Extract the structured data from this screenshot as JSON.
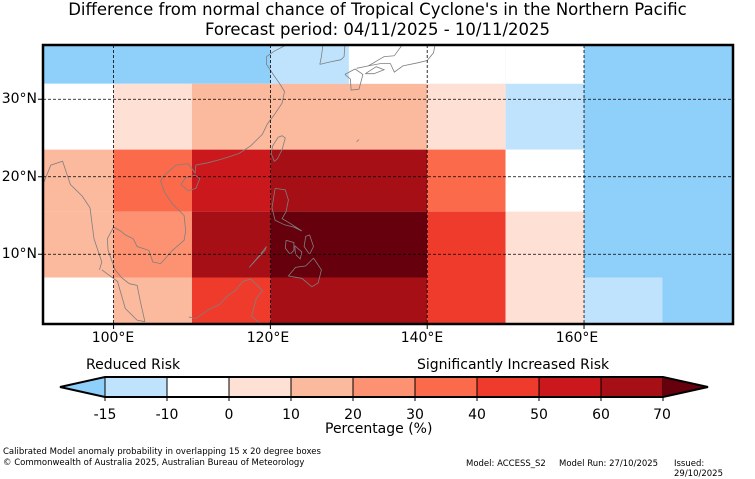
{
  "title_line1": "Difference from normal chance of Tropical Cyclone's in the Northern Pacific",
  "title_line2": "Forecast period: 04/11/2025 - 10/11/2025",
  "map": {
    "lon_range": [
      91,
      179
    ],
    "lat_range": [
      1,
      37
    ],
    "x_ticks": [
      {
        "lon": 100,
        "label": "100°E"
      },
      {
        "lon": 120,
        "label": "120°E"
      },
      {
        "lon": 140,
        "label": "140°E"
      },
      {
        "lon": 160,
        "label": "160°E"
      }
    ],
    "y_ticks": [
      {
        "lat": 30,
        "label": "30°N"
      },
      {
        "lat": 20,
        "label": "20°N"
      },
      {
        "lat": 10,
        "label": "10°N"
      }
    ],
    "cells": [
      {
        "lon0": 91,
        "lon1": 150,
        "lat0": 32,
        "lat1": 37,
        "color": "#8fd0fb"
      },
      {
        "lon0": 91,
        "lon1": 100,
        "lat0": 23.5,
        "lat1": 32,
        "color": "#ffffff"
      },
      {
        "lon0": 100,
        "lon1": 110,
        "lat0": 23.5,
        "lat1": 32,
        "color": "#fee0d4"
      },
      {
        "lon0": 110,
        "lon1": 140,
        "lat0": 23.5,
        "lat1": 32,
        "color": "#fbb99d"
      },
      {
        "lon0": 140,
        "lon1": 150,
        "lat0": 23.5,
        "lat1": 32,
        "color": "#fee0d4"
      },
      {
        "lon0": 150,
        "lon1": 160,
        "lat0": 23.5,
        "lat1": 32,
        "color": "#c0e3fd"
      },
      {
        "lon0": 91,
        "lon1": 100,
        "lat0": 15.5,
        "lat1": 23.5,
        "color": "#fbb99d"
      },
      {
        "lon0": 100,
        "lon1": 110,
        "lat0": 15.5,
        "lat1": 23.5,
        "color": "#fb6a4a"
      },
      {
        "lon0": 110,
        "lon1": 120,
        "lat0": 15.5,
        "lat1": 23.5,
        "color": "#cb181d"
      },
      {
        "lon0": 120,
        "lon1": 140,
        "lat0": 15.5,
        "lat1": 23.5,
        "color": "#a50f15"
      },
      {
        "lon0": 140,
        "lon1": 150,
        "lat0": 15.5,
        "lat1": 23.5,
        "color": "#fb6a4a"
      },
      {
        "lon0": 150,
        "lon1": 160,
        "lat0": 15.5,
        "lat1": 23.5,
        "color": "#ffffff"
      },
      {
        "lon0": 91,
        "lon1": 100,
        "lat0": 7,
        "lat1": 15.5,
        "color": "#fbb99d"
      },
      {
        "lon0": 100,
        "lon1": 110,
        "lat0": 7,
        "lat1": 15.5,
        "color": "#fc9272"
      },
      {
        "lon0": 110,
        "lon1": 120,
        "lat0": 7,
        "lat1": 15.5,
        "color": "#a50f15"
      },
      {
        "lon0": 120,
        "lon1": 140,
        "lat0": 7,
        "lat1": 15.5,
        "color": "#67000d"
      },
      {
        "lon0": 140,
        "lon1": 150,
        "lat0": 7,
        "lat1": 15.5,
        "color": "#ef3b2c"
      },
      {
        "lon0": 150,
        "lon1": 160,
        "lat0": 7,
        "lat1": 15.5,
        "color": "#fee0d4"
      },
      {
        "lon0": 91,
        "lon1": 100,
        "lat0": 1,
        "lat1": 7,
        "color": "#ffffff"
      },
      {
        "lon0": 100,
        "lon1": 110,
        "lat0": 1,
        "lat1": 7,
        "color": "#fbb99d"
      },
      {
        "lon0": 110,
        "lon1": 120,
        "lat0": 1,
        "lat1": 7,
        "color": "#ef3b2c"
      },
      {
        "lon0": 120,
        "lon1": 140,
        "lat0": 1,
        "lat1": 7,
        "color": "#a50f15"
      },
      {
        "lon0": 140,
        "lon1": 150,
        "lat0": 1,
        "lat1": 7,
        "color": "#ef3b2c"
      },
      {
        "lon0": 150,
        "lon1": 160,
        "lat0": 1,
        "lat1": 7,
        "color": "#fee0d4"
      },
      {
        "lon0": 160,
        "lon1": 179,
        "lat0": 1,
        "lat1": 37,
        "color": "#8fd0fb"
      },
      {
        "lon0": 160,
        "lon1": 170,
        "lat0": 1,
        "lat1": 7,
        "color": "#c0e3fd"
      },
      {
        "lon0": 120,
        "lon1": 130,
        "lat0": 32,
        "lat1": 37,
        "color": "#c0e3fd"
      },
      {
        "lon0": 130,
        "lon1": 150,
        "lat0": 32,
        "lat1": 37,
        "color": "#ffffff"
      }
    ],
    "coastlines": [
      [
        [
          91,
          19
        ],
        [
          92,
          21.5
        ],
        [
          93.5,
          22
        ],
        [
          94.5,
          19
        ],
        [
          96,
          17.5
        ],
        [
          97,
          16
        ],
        [
          97.5,
          12
        ],
        [
          98.5,
          9
        ],
        [
          98.2,
          8
        ]
      ],
      [
        [
          98.5,
          8
        ],
        [
          100.5,
          6.5
        ],
        [
          101.5,
          3
        ],
        [
          103,
          1.5
        ],
        [
          104,
          1.3
        ]
      ],
      [
        [
          104,
          1.3
        ],
        [
          103.4,
          4
        ],
        [
          103,
          6
        ],
        [
          102,
          6.2
        ],
        [
          101,
          7
        ],
        [
          100.2,
          8
        ],
        [
          99.3,
          10.5
        ],
        [
          99.2,
          12
        ],
        [
          100,
          13.5
        ],
        [
          100.9,
          13
        ],
        [
          101.5,
          12.5
        ],
        [
          102.5,
          12
        ],
        [
          103,
          11
        ],
        [
          104.5,
          10.5
        ],
        [
          105,
          9
        ],
        [
          106,
          8.8
        ],
        [
          107.5,
          10.5
        ],
        [
          109,
          11.8
        ],
        [
          109.2,
          13
        ],
        [
          109,
          15
        ],
        [
          107.5,
          16.5
        ],
        [
          106.5,
          18
        ],
        [
          106,
          19.5
        ],
        [
          106.8,
          20.5
        ],
        [
          108,
          21.5
        ],
        [
          109.5,
          21.7
        ],
        [
          110.4,
          20.5
        ],
        [
          110.5,
          21.5
        ],
        [
          112,
          21.8
        ],
        [
          113.5,
          22.2
        ],
        [
          114.5,
          22.5
        ],
        [
          116,
          23
        ],
        [
          117.5,
          24
        ],
        [
          119,
          25.5
        ],
        [
          119.6,
          26.8
        ],
        [
          120.5,
          28
        ],
        [
          121.5,
          29.5
        ],
        [
          121.8,
          31
        ],
        [
          121.2,
          32
        ],
        [
          120.5,
          33
        ],
        [
          119.5,
          34.5
        ],
        [
          119.5,
          35.5
        ],
        [
          120.5,
          36.2
        ],
        [
          122,
          37
        ]
      ],
      [
        [
          120.1,
          23
        ],
        [
          120.5,
          22
        ],
        [
          120.9,
          22.3
        ],
        [
          121.5,
          23.5
        ],
        [
          121.9,
          25
        ],
        [
          121.5,
          25.3
        ],
        [
          121,
          25.1
        ],
        [
          120.3,
          24
        ],
        [
          120.1,
          23
        ]
      ],
      [
        [
          108.6,
          19
        ],
        [
          109.5,
          18.2
        ],
        [
          110.5,
          18.5
        ],
        [
          111,
          19.8
        ],
        [
          110.4,
          20.2
        ],
        [
          109.2,
          19.9
        ],
        [
          108.6,
          19
        ]
      ],
      [
        [
          120.6,
          18.5
        ],
        [
          121.9,
          18.3
        ],
        [
          122.3,
          17
        ],
        [
          122,
          15.5
        ],
        [
          121.5,
          14.6
        ],
        [
          122.5,
          14
        ],
        [
          124,
          13
        ],
        [
          123,
          13.5
        ],
        [
          121.8,
          13.8
        ],
        [
          120.6,
          14.4
        ],
        [
          120.2,
          16
        ],
        [
          120.6,
          18.5
        ]
      ],
      [
        [
          125,
          12.5
        ],
        [
          125.5,
          11
        ],
        [
          125,
          10
        ],
        [
          124.3,
          11
        ],
        [
          124.5,
          12.3
        ],
        [
          125,
          12.5
        ]
      ],
      [
        [
          122,
          11.8
        ],
        [
          123,
          11.5
        ],
        [
          123,
          10.5
        ],
        [
          122.5,
          10
        ],
        [
          121.9,
          10.8
        ],
        [
          122,
          11.8
        ]
      ],
      [
        [
          123.1,
          11.1
        ],
        [
          124,
          10.3
        ],
        [
          123.8,
          9.4
        ],
        [
          123.2,
          10
        ],
        [
          123.1,
          11.1
        ]
      ],
      [
        [
          125.5,
          9.5
        ],
        [
          126.5,
          8
        ],
        [
          126.1,
          6.3
        ],
        [
          125.3,
          5.8
        ],
        [
          124,
          6.9
        ],
        [
          122.3,
          7.2
        ],
        [
          123.2,
          8.3
        ],
        [
          124.5,
          8.5
        ],
        [
          125.5,
          9.5
        ]
      ],
      [
        [
          117.3,
          8.3
        ],
        [
          119.3,
          10.5
        ],
        [
          119.5,
          11
        ],
        [
          118.8,
          10.1
        ],
        [
          117.3,
          8.3
        ]
      ],
      [
        [
          109.6,
          1.9
        ],
        [
          110.5,
          1.7
        ],
        [
          112,
          2.8
        ],
        [
          113.5,
          3.5
        ],
        [
          114.5,
          4.6
        ],
        [
          115.5,
          5.3
        ],
        [
          116.5,
          6.5
        ],
        [
          117.5,
          6.8
        ],
        [
          119,
          5.3
        ],
        [
          118.2,
          4.3
        ],
        [
          117.6,
          2
        ],
        [
          118.8,
          1
        ]
      ],
      [
        [
          129.5,
          33.2
        ],
        [
          130.8,
          33.9
        ],
        [
          131.8,
          33.2
        ],
        [
          131.3,
          31.3
        ],
        [
          130.3,
          31.2
        ],
        [
          130.2,
          32.6
        ],
        [
          129.5,
          33.2
        ]
      ],
      [
        [
          131,
          34
        ],
        [
          132.5,
          34.3
        ],
        [
          134,
          34.6
        ],
        [
          135.3,
          34.6
        ],
        [
          135.8,
          33.5
        ],
        [
          136.9,
          34.3
        ],
        [
          138.8,
          34.7
        ],
        [
          140,
          35
        ],
        [
          140.8,
          36
        ],
        [
          141,
          37
        ]
      ],
      [
        [
          132.5,
          34.3
        ],
        [
          134.5,
          35.5
        ],
        [
          135.8,
          35.6
        ],
        [
          136.8,
          37
        ]
      ],
      [
        [
          132.1,
          33.3
        ],
        [
          133.2,
          33.3
        ],
        [
          134.5,
          33.8
        ],
        [
          133.5,
          34.2
        ],
        [
          132.1,
          33.3
        ]
      ],
      [
        [
          126.3,
          34.5
        ],
        [
          127.5,
          34.8
        ],
        [
          129,
          35.1
        ],
        [
          129.4,
          35.5
        ],
        [
          129.5,
          37
        ]
      ],
      [
        [
          126.3,
          34.5
        ],
        [
          126.5,
          35.5
        ],
        [
          126.7,
          37
        ]
      ],
      [
        [
          131,
          24.5
        ],
        [
          131.3,
          24.8
        ]
      ]
    ]
  },
  "colorbar": {
    "colors": [
      "#8fd0fb",
      "#c0e3fd",
      "#ffffff",
      "#fee0d4",
      "#fbb99d",
      "#fc9272",
      "#fb6a4a",
      "#ef3b2c",
      "#cb181d",
      "#a50f15",
      "#67000d"
    ],
    "tick_labels": [
      "-15",
      "-10",
      "0",
      "10",
      "20",
      "30",
      "40",
      "50",
      "60",
      "70"
    ],
    "label_reduced": "Reduced Risk",
    "label_increased": "Significantly Increased Risk",
    "axis_label": "Percentage (%)"
  },
  "footer": {
    "line1": "Calibrated Model anomaly probability in overlapping 15 x 20 degree boxes",
    "line2": "© Commonwealth of Australia 2025, Australian Bureau of Meteorology",
    "model": "Model: ACCESS_S2",
    "model_run": "Model Run: 27/10/2025",
    "issued": "Issued: 29/10/2025"
  }
}
